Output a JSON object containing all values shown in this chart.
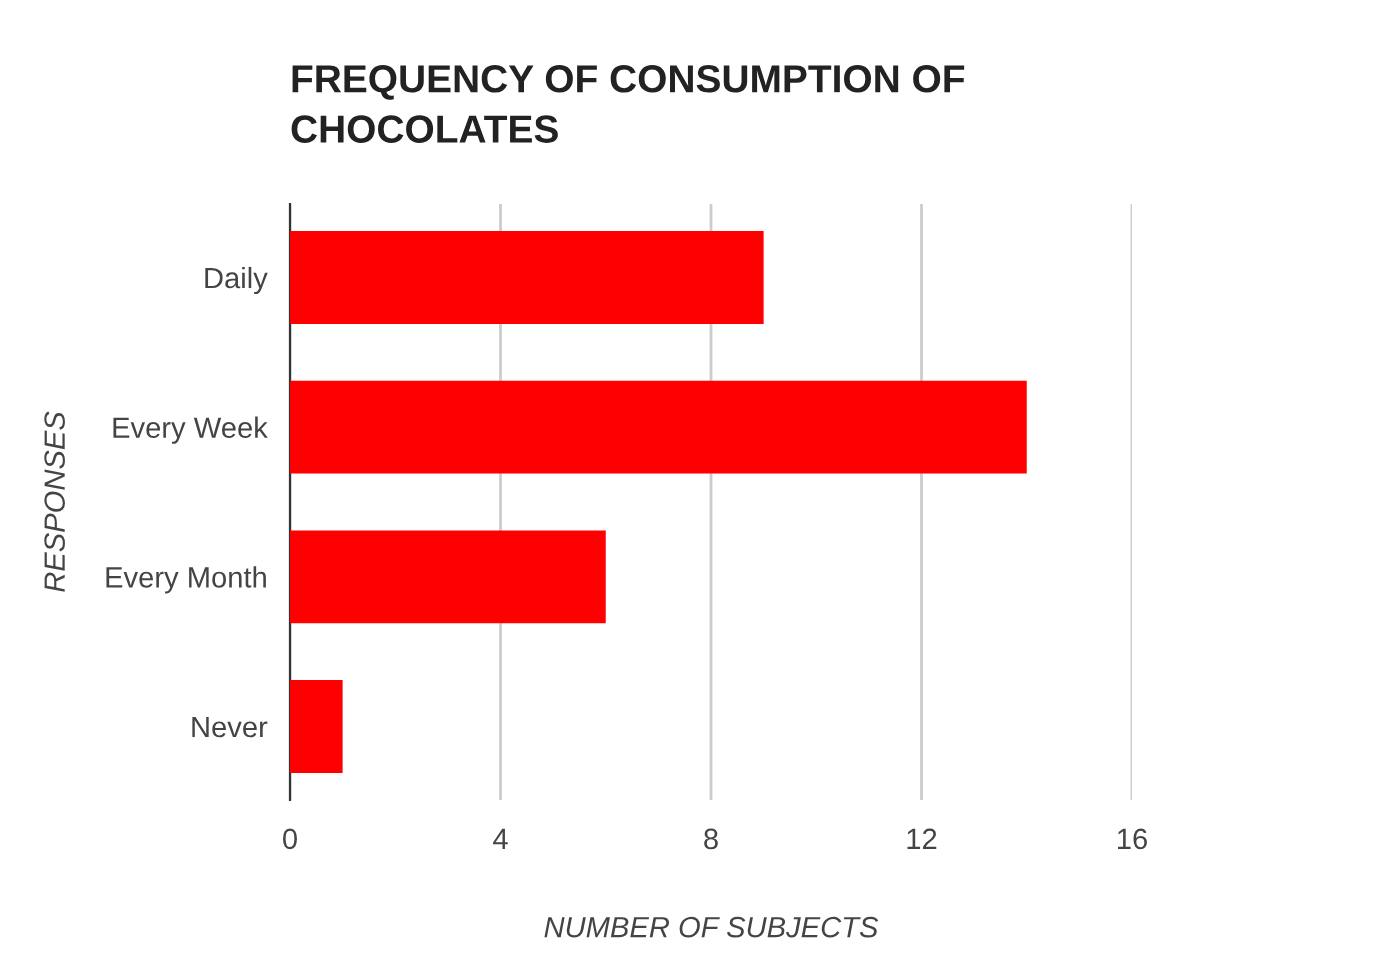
{
  "chart_data": {
    "type": "bar",
    "orientation": "horizontal",
    "title": "FREQUENCY OF CONSUMPTION OF\nCHOCOLATES",
    "xlabel": "NUMBER OF SUBJECTS",
    "ylabel": "RESPONSES",
    "categories": [
      "Daily",
      "Every Week",
      "Every Month",
      "Never"
    ],
    "values": [
      9,
      14,
      6,
      1
    ],
    "color": "#ff0000",
    "xlim": [
      0,
      16
    ],
    "xticks": [
      0,
      4,
      8,
      12,
      16
    ],
    "grid": "x",
    "legend": false
  }
}
